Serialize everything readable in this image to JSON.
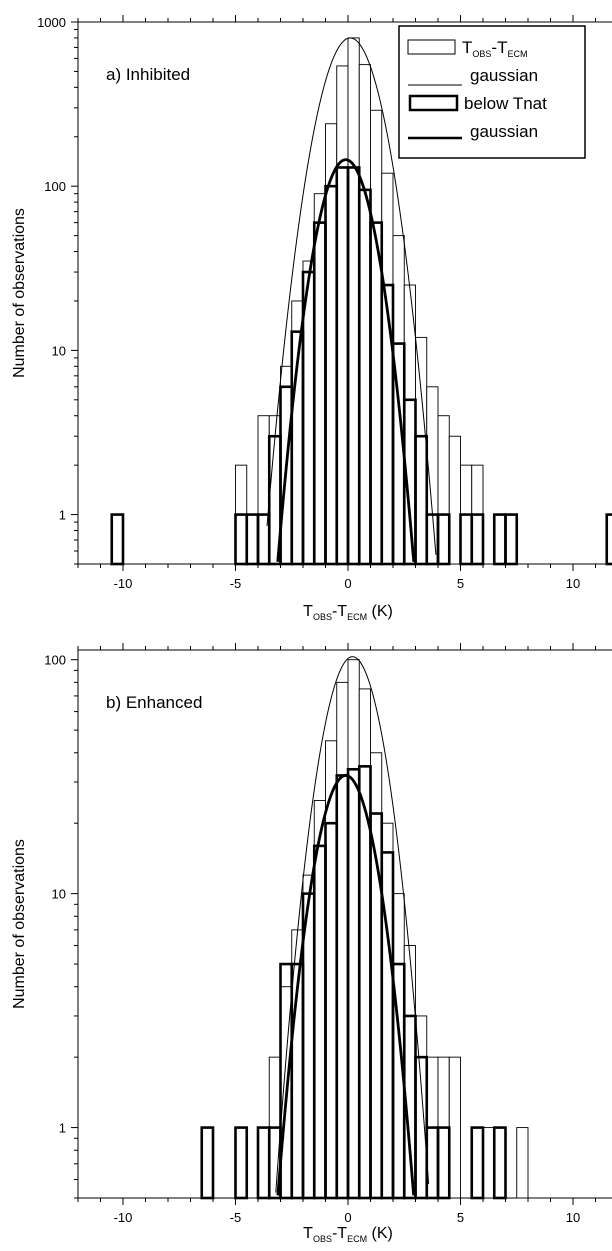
{
  "chart_data": [
    {
      "type": "bar",
      "panel_label": "a) Inhibited",
      "xlabel_main": "T",
      "xlabel_sub1": "OBS",
      "xlabel_dash": "-T",
      "xlabel_sub2": "ECM",
      "xlabel_unit": " (K)",
      "ylabel": "Number of observations",
      "xlim": [
        -12,
        12
      ],
      "ylim": [
        0.5,
        1000
      ],
      "y_scale": "log",
      "x_ticks": [
        -10,
        -5,
        0,
        5,
        10
      ],
      "x_tick_labels": [
        "-10",
        "-5",
        "0",
        "5",
        "10"
      ],
      "y_ticks": [
        1,
        10,
        100,
        1000
      ],
      "y_tick_labels": [
        "1",
        "10",
        "100",
        "1000"
      ],
      "bin_width": 0.5,
      "legend": {
        "position": "top-right",
        "entries": [
          {
            "label_main": "T",
            "label_sub1": "OBS",
            "label_dash": "-T",
            "label_sub2": "ECM",
            "marker": "thin-box"
          },
          {
            "label_main": "gaussian",
            "marker": "thin-line"
          },
          {
            "label_main": "below Tnat",
            "marker": "thick-box"
          },
          {
            "label_main": "gaussian",
            "marker": "thick-line"
          }
        ]
      },
      "series": [
        {
          "name": "TOBS-TECM",
          "style": "thin-box",
          "bins": [
            {
              "x": -4.75,
              "y": 2
            },
            {
              "x": -4.25,
              "y": 1
            },
            {
              "x": -3.75,
              "y": 4
            },
            {
              "x": -3.25,
              "y": 4
            },
            {
              "x": -2.75,
              "y": 8
            },
            {
              "x": -2.25,
              "y": 20
            },
            {
              "x": -1.75,
              "y": 35
            },
            {
              "x": -1.25,
              "y": 90
            },
            {
              "x": -0.75,
              "y": 240
            },
            {
              "x": -0.25,
              "y": 540
            },
            {
              "x": 0.25,
              "y": 800
            },
            {
              "x": 0.75,
              "y": 550
            },
            {
              "x": 1.25,
              "y": 290
            },
            {
              "x": 1.75,
              "y": 120
            },
            {
              "x": 2.25,
              "y": 50
            },
            {
              "x": 2.75,
              "y": 25
            },
            {
              "x": 3.25,
              "y": 12
            },
            {
              "x": 3.75,
              "y": 6
            },
            {
              "x": 4.25,
              "y": 4
            },
            {
              "x": 4.75,
              "y": 3
            },
            {
              "x": 5.25,
              "y": 2
            },
            {
              "x": 5.75,
              "y": 2
            }
          ]
        },
        {
          "name": "gaussian (thin)",
          "style": "thin-line",
          "amplitude": 800,
          "mean": 0.1,
          "sigma": 1.0,
          "x_range": [
            -3.6,
            4.2
          ]
        },
        {
          "name": "below Tnat",
          "style": "thick-box",
          "bins": [
            {
              "x": -10.25,
              "y": 1
            },
            {
              "x": -4.75,
              "y": 1
            },
            {
              "x": -4.25,
              "y": 1
            },
            {
              "x": -3.75,
              "y": 1
            },
            {
              "x": -3.25,
              "y": 3
            },
            {
              "x": -2.75,
              "y": 6
            },
            {
              "x": -2.25,
              "y": 13
            },
            {
              "x": -1.75,
              "y": 30
            },
            {
              "x": -1.25,
              "y": 60
            },
            {
              "x": -0.75,
              "y": 100
            },
            {
              "x": -0.25,
              "y": 130
            },
            {
              "x": 0.25,
              "y": 130
            },
            {
              "x": 0.75,
              "y": 95
            },
            {
              "x": 1.25,
              "y": 60
            },
            {
              "x": 1.75,
              "y": 25
            },
            {
              "x": 2.25,
              "y": 11
            },
            {
              "x": 2.75,
              "y": 5
            },
            {
              "x": 3.25,
              "y": 3
            },
            {
              "x": 3.75,
              "y": 1
            },
            {
              "x": 4.25,
              "y": 1
            },
            {
              "x": 5.25,
              "y": 1
            },
            {
              "x": 5.75,
              "y": 1
            },
            {
              "x": 6.75,
              "y": 1
            },
            {
              "x": 7.25,
              "y": 1
            },
            {
              "x": 11.75,
              "y": 1
            }
          ]
        },
        {
          "name": "gaussian (thick)",
          "style": "thick-line",
          "amplitude": 145,
          "mean": -0.1,
          "sigma": 0.9,
          "x_range": [
            -3.2,
            3.0
          ]
        }
      ]
    },
    {
      "type": "bar",
      "panel_label": "b) Enhanced",
      "xlabel_main": "T",
      "xlabel_sub1": "OBS",
      "xlabel_dash": "-T",
      "xlabel_sub2": "ECM",
      "xlabel_unit": " (K)",
      "ylabel": "Number of observations",
      "xlim": [
        -12,
        12
      ],
      "ylim": [
        0.5,
        110
      ],
      "y_scale": "log",
      "x_ticks": [
        -10,
        -5,
        0,
        5,
        10
      ],
      "x_tick_labels": [
        "-10",
        "-5",
        "0",
        "5",
        "10"
      ],
      "y_ticks": [
        1,
        10,
        100
      ],
      "y_tick_labels": [
        "1",
        "10",
        "100"
      ],
      "bin_width": 0.5,
      "series": [
        {
          "name": "TOBS-TECM",
          "style": "thin-box",
          "bins": [
            {
              "x": -3.25,
              "y": 2
            },
            {
              "x": -2.75,
              "y": 4
            },
            {
              "x": -2.25,
              "y": 7
            },
            {
              "x": -1.75,
              "y": 12
            },
            {
              "x": -1.25,
              "y": 25
            },
            {
              "x": -0.75,
              "y": 45
            },
            {
              "x": -0.25,
              "y": 80
            },
            {
              "x": 0.25,
              "y": 100
            },
            {
              "x": 0.75,
              "y": 75
            },
            {
              "x": 1.25,
              "y": 40
            },
            {
              "x": 1.75,
              "y": 20
            },
            {
              "x": 2.25,
              "y": 10
            },
            {
              "x": 2.75,
              "y": 6
            },
            {
              "x": 3.25,
              "y": 3
            },
            {
              "x": 3.75,
              "y": 2
            },
            {
              "x": 4.25,
              "y": 2
            },
            {
              "x": 4.75,
              "y": 2
            },
            {
              "x": 5.75,
              "y": 1
            },
            {
              "x": 6.25,
              "y": 1
            },
            {
              "x": 6.75,
              "y": 1
            },
            {
              "x": 7.75,
              "y": 1
            }
          ]
        },
        {
          "name": "gaussian (thin)",
          "style": "thin-line",
          "amplitude": 103,
          "mean": 0.2,
          "sigma": 1.05,
          "x_range": [
            -3.4,
            4.2
          ]
        },
        {
          "name": "below Tnat",
          "style": "thick-box",
          "bins": [
            {
              "x": -6.25,
              "y": 1
            },
            {
              "x": -4.75,
              "y": 1
            },
            {
              "x": -3.75,
              "y": 1
            },
            {
              "x": -3.25,
              "y": 1
            },
            {
              "x": -2.75,
              "y": 5
            },
            {
              "x": -2.25,
              "y": 5
            },
            {
              "x": -1.75,
              "y": 10
            },
            {
              "x": -1.25,
              "y": 16
            },
            {
              "x": -0.75,
              "y": 20
            },
            {
              "x": -0.25,
              "y": 32
            },
            {
              "x": 0.25,
              "y": 34
            },
            {
              "x": 0.75,
              "y": 35
            },
            {
              "x": 1.25,
              "y": 22
            },
            {
              "x": 1.75,
              "y": 15
            },
            {
              "x": 2.25,
              "y": 5
            },
            {
              "x": 2.75,
              "y": 3
            },
            {
              "x": 3.25,
              "y": 2
            },
            {
              "x": 3.75,
              "y": 1
            },
            {
              "x": 4.25,
              "y": 1
            },
            {
              "x": 5.75,
              "y": 1
            },
            {
              "x": 6.75,
              "y": 1
            }
          ]
        },
        {
          "name": "gaussian (thick)",
          "style": "thick-line",
          "amplitude": 32,
          "mean": -0.1,
          "sigma": 1.05,
          "x_range": [
            -3.6,
            3.4
          ]
        }
      ]
    }
  ]
}
